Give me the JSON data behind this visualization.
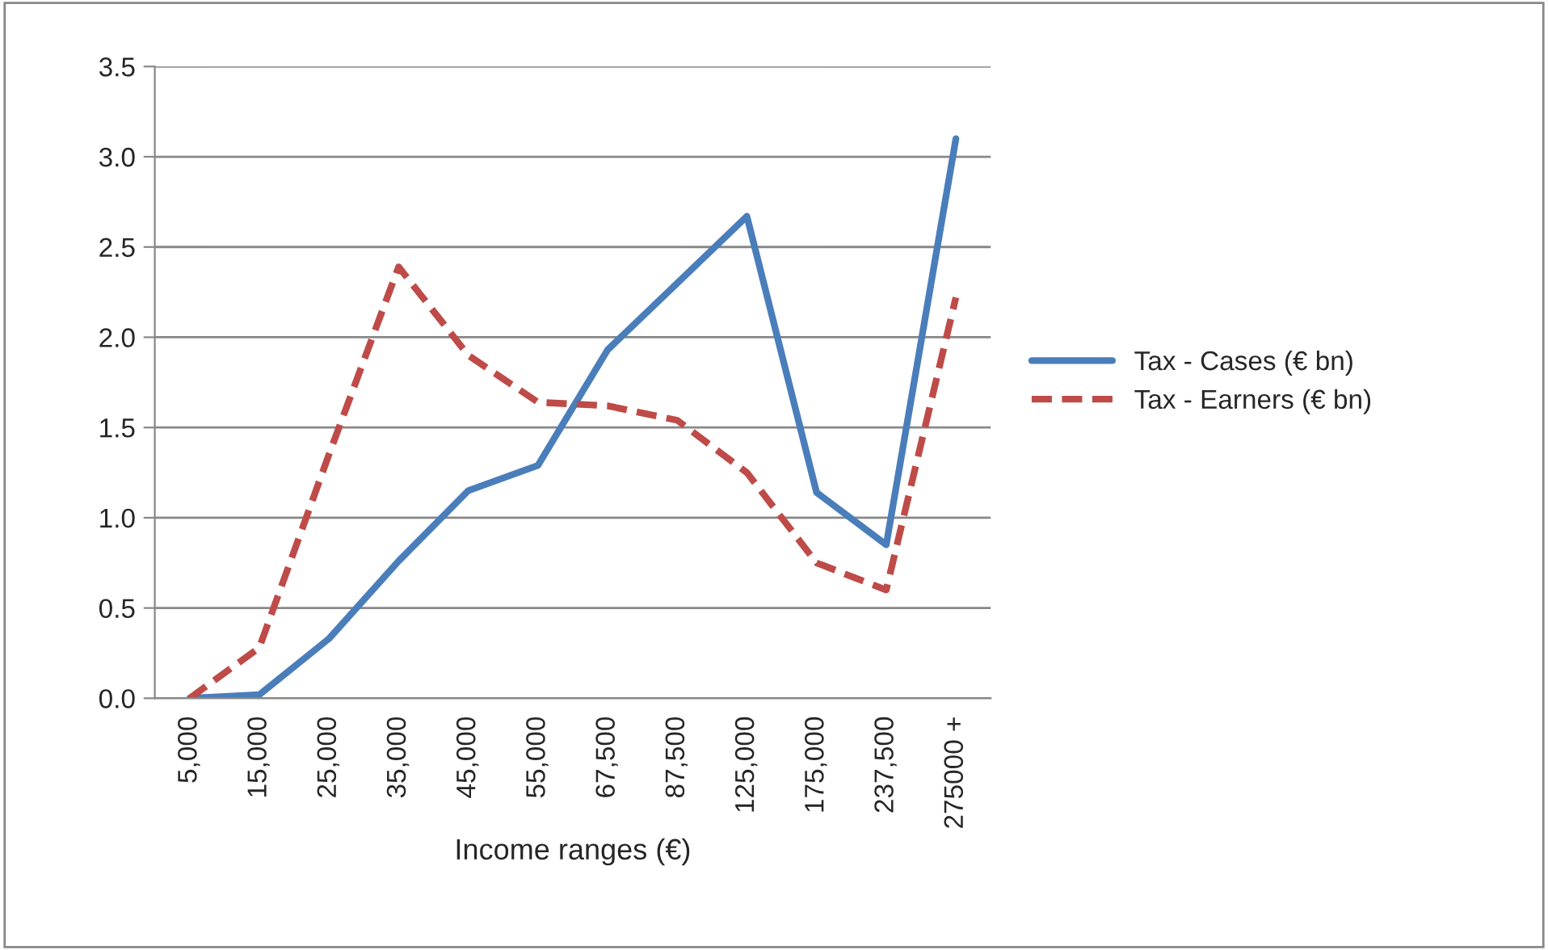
{
  "chart_data": {
    "type": "line",
    "xlabel": "Income ranges (€)",
    "categories": [
      "5,000",
      "15,000",
      "25,000",
      "35,000",
      "45,000",
      "55,000",
      "67,500",
      "87,500",
      "125,000",
      "175,000",
      "237,500",
      "275000 +"
    ],
    "series": [
      {
        "name": "Tax - Cases (€ bn)",
        "color": "#4a7ebb",
        "line_style": "solid",
        "values": [
          0,
          0.02,
          0.33,
          0.76,
          1.15,
          1.29,
          1.93,
          2.3,
          2.67,
          1.14,
          0.85,
          3.1
        ]
      },
      {
        "name": "Tax - Earners (€ bn)",
        "color": "#be4b48",
        "line_style": "dashed",
        "values": [
          0,
          0.28,
          1.35,
          2.39,
          1.9,
          1.64,
          1.62,
          1.54,
          1.25,
          0.75,
          0.6,
          2.22
        ]
      }
    ],
    "ylim": [
      0,
      3.5
    ],
    "yticks": [
      {
        "value": 0,
        "label": "0.0"
      },
      {
        "value": 0.5,
        "label": "0.5"
      },
      {
        "value": 1,
        "label": "1.0"
      },
      {
        "value": 1.5,
        "label": "1.5"
      },
      {
        "value": 2,
        "label": "2.0"
      },
      {
        "value": 2.5,
        "label": "2.5"
      },
      {
        "value": 3,
        "label": "3.0"
      },
      {
        "value": 3.5,
        "label": "3.5"
      }
    ],
    "grid": "y",
    "legend": "right",
    "marker": "none"
  }
}
